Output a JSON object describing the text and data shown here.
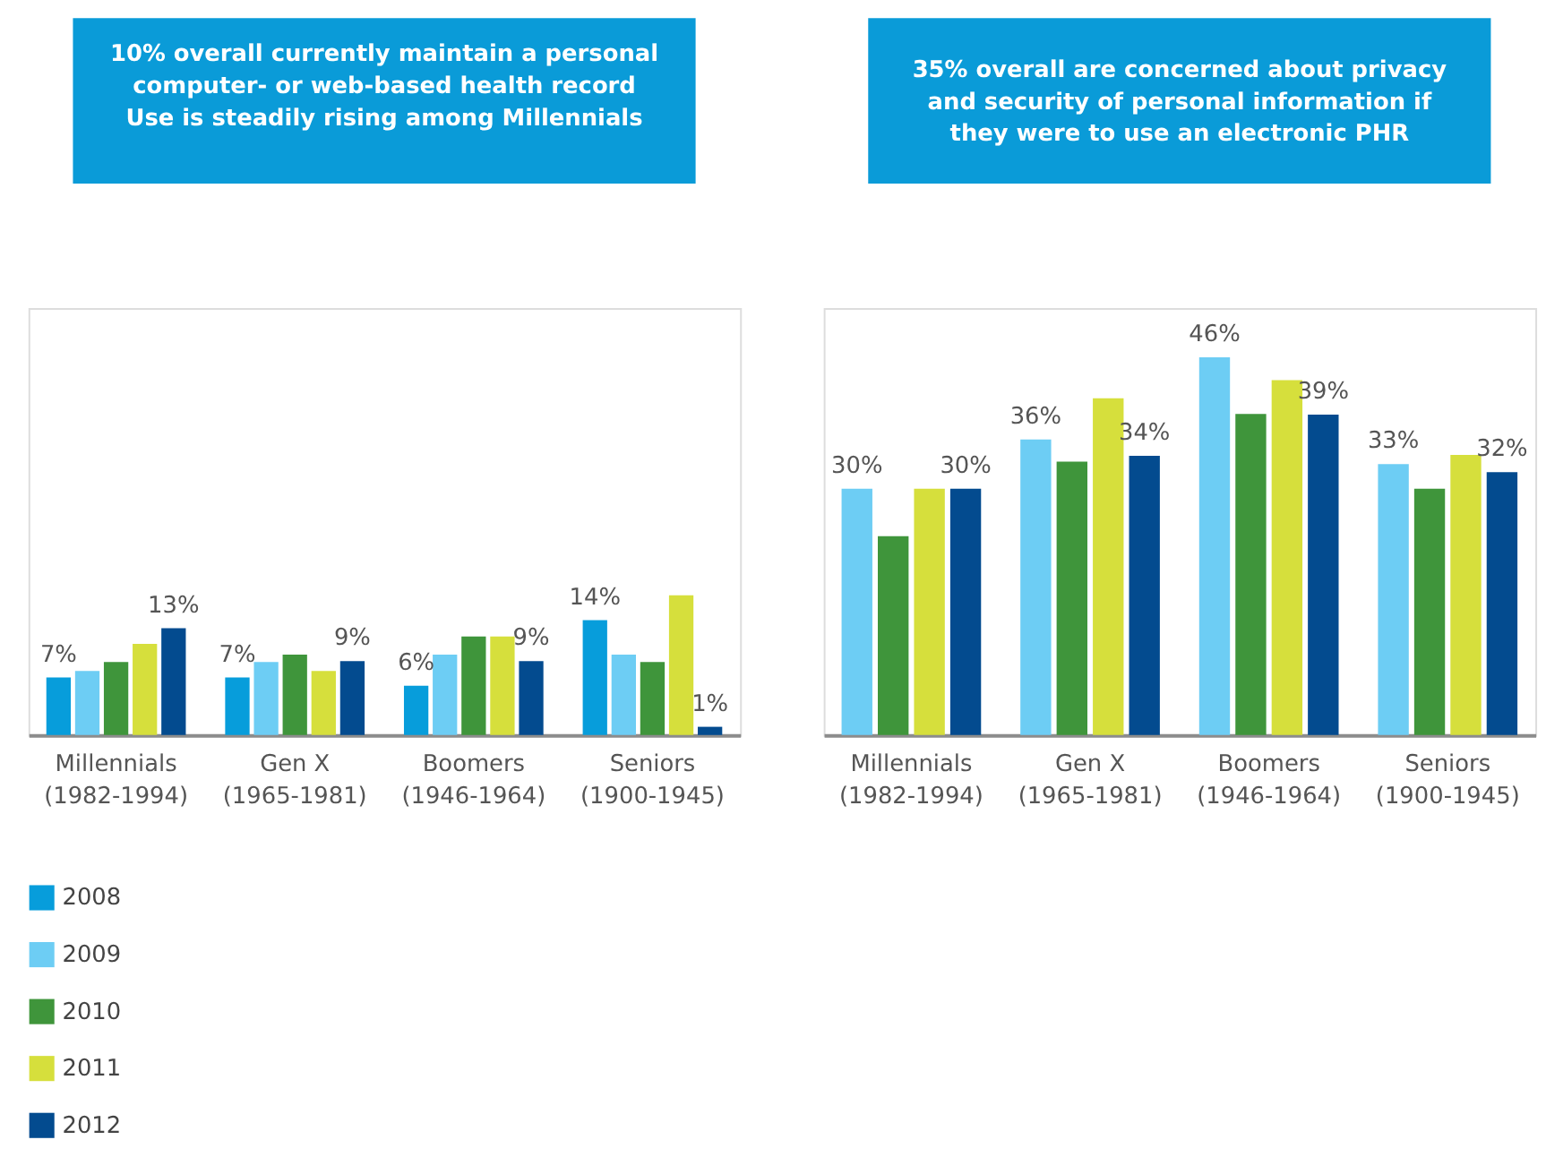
{
  "chart_data": [
    {
      "type": "bar",
      "title": "10% overall currently maintain a personal\ncomputer- or web-based health record\n\nUse is steadily rising among Millennials",
      "categories": [
        "Millennials\n(1982-1994)",
        "Gen X\n(1965-1981)",
        "Boomers\n(1946-1964)",
        "Seniors\n(1900-1945)"
      ],
      "legend": "bottom left",
      "series": [
        {
          "name": "2008",
          "color": "#079ddb",
          "values": [
            7,
            7,
            6,
            14
          ],
          "value_labels": [
            "7%",
            "7%",
            "6%",
            "14%"
          ]
        },
        {
          "name": "2009",
          "color": "#6dcdf4",
          "values": [
            7.8,
            8.9,
            9.8,
            9.8
          ]
        },
        {
          "name": "2010",
          "color": "#3f953b",
          "values": [
            8.9,
            9.8,
            12,
            8.9
          ]
        },
        {
          "name": "2011",
          "color": "#d6df3c",
          "values": [
            11.1,
            7.8,
            12,
            17
          ]
        },
        {
          "name": "2012",
          "color": "#034b8f",
          "values": [
            13,
            9,
            9,
            1
          ],
          "value_labels": [
            "13%",
            "9%",
            "9%",
            "1%"
          ]
        }
      ]
    },
    {
      "type": "bar",
      "title": "35% overall are concerned about privacy\nand security of personal information if\nthey were to use an electronic PHR",
      "categories": [
        "Millennials\n(1982-1994)",
        "Gen X\n(1965-1981)",
        "Boomers\n(1946-1964)",
        "Seniors\n(1900-1945)"
      ],
      "series": [
        {
          "color": "#6dcdf4",
          "values": [
            30,
            36,
            46,
            33
          ],
          "value_labels": [
            "30%",
            "36%",
            "46%",
            "33%"
          ]
        },
        {
          "color": "#3f953b",
          "values": [
            24.2,
            33.3,
            39.1,
            30
          ]
        },
        {
          "color": "#d6df3c",
          "values": [
            30,
            41,
            43.2,
            34.1
          ]
        },
        {
          "color": "#034b8f",
          "values": [
            30,
            34,
            39,
            32
          ],
          "value_labels": [
            "30%",
            "34%",
            "39%",
            "32%"
          ]
        }
      ]
    }
  ]
}
